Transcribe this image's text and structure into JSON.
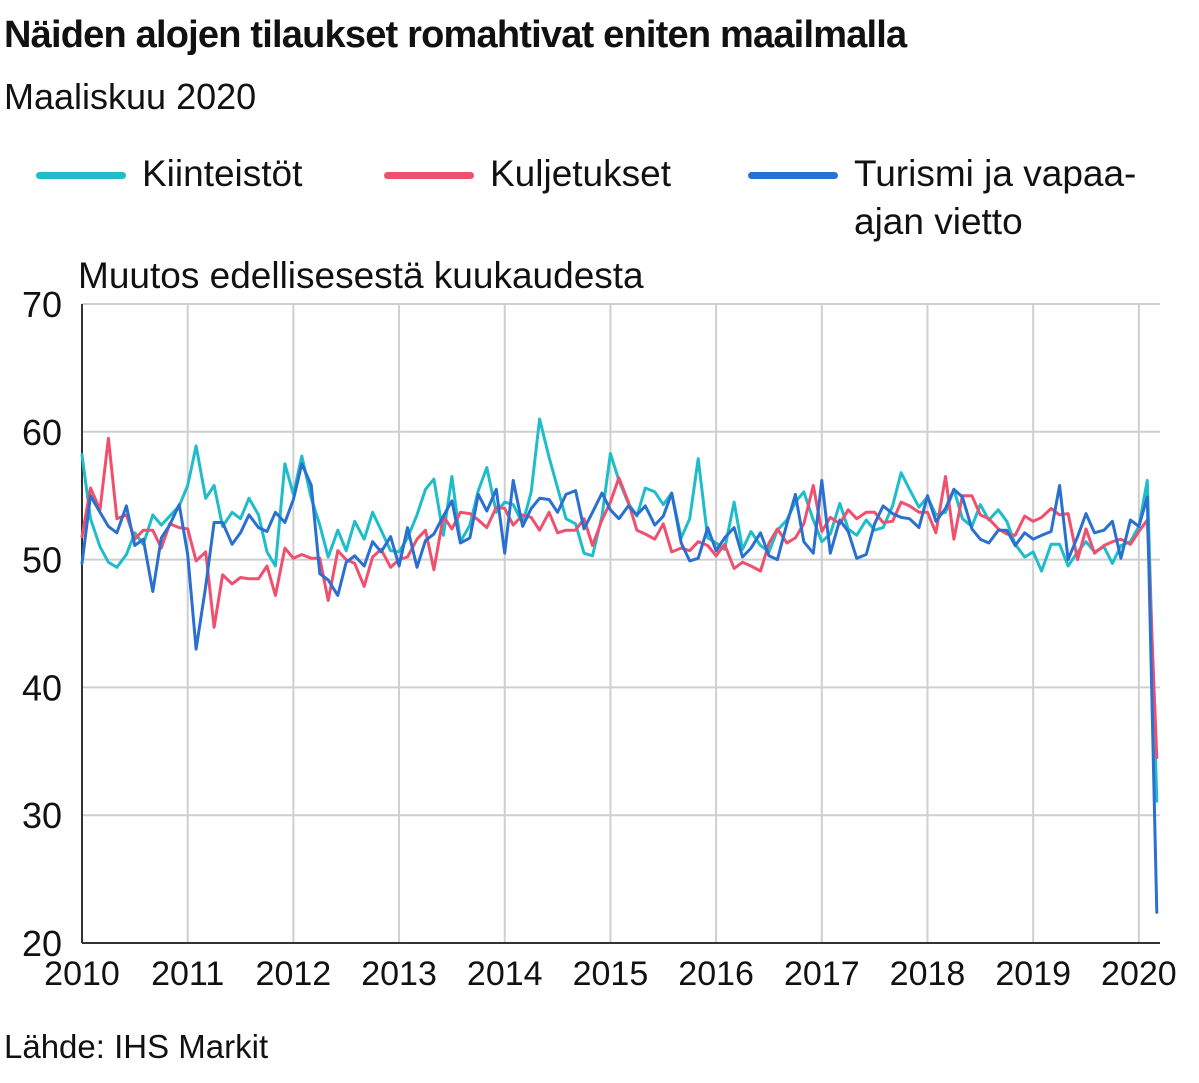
{
  "title": "Näiden alojen tilaukset romahtivat eniten maailmalla",
  "subtitle": "Maaliskuu 2020",
  "source": "Lähde: IHS Markit",
  "chart_data": {
    "type": "line",
    "ylabel": "Muutos edellisesestä kuukaudesta",
    "ylim": [
      20,
      70
    ],
    "y_ticks": [
      "70",
      "60",
      "50",
      "40",
      "30",
      "20"
    ],
    "xlim": [
      2010,
      2020.2
    ],
    "x_ticks": [
      "2010",
      "2011",
      "2012",
      "2013",
      "2014",
      "2015",
      "2016",
      "2017",
      "2018",
      "2019",
      "2020"
    ],
    "grid": true,
    "legend_position": "top",
    "series": [
      {
        "name": "Kiinteistöt",
        "color": "#1fbdca",
        "x": [
          2010.0,
          2010.08,
          2010.17,
          2010.25,
          2010.33,
          2010.42,
          2010.5,
          2010.58,
          2010.67,
          2010.75,
          2010.83,
          2010.92,
          2011.0,
          2011.08,
          2011.17,
          2011.25,
          2011.33,
          2011.42,
          2011.5,
          2011.58,
          2011.67,
          2011.75,
          2011.83,
          2011.92,
          2012.0,
          2012.08,
          2012.17,
          2012.25,
          2012.33,
          2012.42,
          2012.5,
          2012.58,
          2012.67,
          2012.75,
          2012.83,
          2012.92,
          2013.0,
          2013.08,
          2013.17,
          2013.25,
          2013.33,
          2013.42,
          2013.5,
          2013.58,
          2013.67,
          2013.75,
          2013.83,
          2013.92,
          2014.0,
          2014.08,
          2014.17,
          2014.25,
          2014.33,
          2014.42,
          2014.5,
          2014.58,
          2014.67,
          2014.75,
          2014.83,
          2014.92,
          2015.0,
          2015.08,
          2015.17,
          2015.25,
          2015.33,
          2015.42,
          2015.5,
          2015.58,
          2015.67,
          2015.75,
          2015.83,
          2015.92,
          2016.0,
          2016.08,
          2016.17,
          2016.25,
          2016.33,
          2016.42,
          2016.5,
          2016.58,
          2016.67,
          2016.75,
          2016.83,
          2016.92,
          2017.0,
          2017.08,
          2017.17,
          2017.25,
          2017.33,
          2017.42,
          2017.5,
          2017.58,
          2017.67,
          2017.75,
          2017.83,
          2017.92,
          2018.0,
          2018.08,
          2018.17,
          2018.25,
          2018.33,
          2018.42,
          2018.5,
          2018.58,
          2018.67,
          2018.75,
          2018.83,
          2018.92,
          2019.0,
          2019.08,
          2019.17,
          2019.25,
          2019.33,
          2019.42,
          2019.5,
          2019.58,
          2019.67,
          2019.75,
          2019.83,
          2019.92,
          2020.0,
          2020.08,
          2020.17
        ],
        "values": [
          58.2,
          53.2,
          51.0,
          49.8,
          49.4,
          50.4,
          52.1,
          51.2,
          53.5,
          52.7,
          53.4,
          54.2,
          55.8,
          58.9,
          54.8,
          55.8,
          52.6,
          53.7,
          53.2,
          54.8,
          53.5,
          50.6,
          49.5,
          57.5,
          55.1,
          58.1,
          54.8,
          52.7,
          50.2,
          52.3,
          50.7,
          53.0,
          51.6,
          53.7,
          52.3,
          50.7,
          50.6,
          51.7,
          53.5,
          55.5,
          56.3,
          51.9,
          56.5,
          51.4,
          52.7,
          55.4,
          57.2,
          53.7,
          54.5,
          54.3,
          52.8,
          55.3,
          61.0,
          58.0,
          55.6,
          53.2,
          52.8,
          50.5,
          50.3,
          53.4,
          58.3,
          56.2,
          54.4,
          53.4,
          55.6,
          55.3,
          54.3,
          55.2,
          51.7,
          53.2,
          57.9,
          51.7,
          51.3,
          50.8,
          54.5,
          50.8,
          52.2,
          51.1,
          50.6,
          52.3,
          53.1,
          54.5,
          55.3,
          53.1,
          51.4,
          52.0,
          54.4,
          52.4,
          51.9,
          53.1,
          52.3,
          52.5,
          54.2,
          56.8,
          55.5,
          54.1,
          54.9,
          53.5,
          53.7,
          55.5,
          53.2,
          52.6,
          54.3,
          53.1,
          53.9,
          53.0,
          51.2,
          50.2,
          50.6,
          49.1,
          51.2,
          51.2,
          49.5,
          50.6,
          51.4,
          50.6,
          51.0,
          49.7,
          51.1,
          51.4,
          52.6,
          56.2,
          31.1
        ]
      },
      {
        "name": "Kuljetukset",
        "color": "#f0506e",
        "x": [
          2010.0,
          2010.08,
          2010.17,
          2010.25,
          2010.33,
          2010.42,
          2010.5,
          2010.58,
          2010.67,
          2010.75,
          2010.83,
          2010.92,
          2011.0,
          2011.08,
          2011.17,
          2011.25,
          2011.33,
          2011.42,
          2011.5,
          2011.58,
          2011.67,
          2011.75,
          2011.83,
          2011.92,
          2012.0,
          2012.08,
          2012.17,
          2012.25,
          2012.33,
          2012.42,
          2012.5,
          2012.58,
          2012.67,
          2012.75,
          2012.83,
          2012.92,
          2013.0,
          2013.08,
          2013.17,
          2013.25,
          2013.33,
          2013.42,
          2013.5,
          2013.58,
          2013.67,
          2013.75,
          2013.83,
          2013.92,
          2014.0,
          2014.08,
          2014.17,
          2014.25,
          2014.33,
          2014.42,
          2014.5,
          2014.58,
          2014.67,
          2014.75,
          2014.83,
          2014.92,
          2015.0,
          2015.08,
          2015.17,
          2015.25,
          2015.33,
          2015.42,
          2015.5,
          2015.58,
          2015.67,
          2015.75,
          2015.83,
          2015.92,
          2016.0,
          2016.08,
          2016.17,
          2016.25,
          2016.33,
          2016.42,
          2016.5,
          2016.58,
          2016.67,
          2016.75,
          2016.83,
          2016.92,
          2017.0,
          2017.08,
          2017.17,
          2017.25,
          2017.33,
          2017.42,
          2017.5,
          2017.58,
          2017.67,
          2017.75,
          2017.83,
          2017.92,
          2018.0,
          2018.08,
          2018.17,
          2018.25,
          2018.33,
          2018.42,
          2018.5,
          2018.58,
          2018.67,
          2018.75,
          2018.83,
          2018.92,
          2019.0,
          2019.08,
          2019.17,
          2019.25,
          2019.33,
          2019.42,
          2019.5,
          2019.58,
          2019.67,
          2019.75,
          2019.83,
          2019.92,
          2020.0,
          2020.08,
          2020.17
        ],
        "values": [
          51.8,
          55.6,
          53.9,
          59.5,
          53.2,
          53.5,
          51.6,
          52.3,
          52.3,
          50.9,
          52.8,
          52.5,
          52.4,
          49.9,
          50.6,
          44.7,
          48.8,
          48.1,
          48.6,
          48.5,
          48.5,
          49.5,
          47.2,
          50.9,
          50.1,
          50.4,
          50.1,
          50.1,
          46.8,
          50.7,
          50.0,
          49.7,
          47.9,
          50.2,
          50.8,
          49.4,
          50.0,
          50.2,
          51.6,
          52.3,
          49.2,
          53.4,
          52.4,
          53.7,
          53.6,
          53.1,
          52.5,
          54.1,
          54.0,
          52.7,
          53.5,
          53.3,
          52.3,
          53.7,
          52.1,
          52.3,
          52.3,
          53.2,
          51.1,
          53.1,
          54.5,
          56.4,
          54.5,
          52.3,
          52.0,
          51.6,
          52.8,
          50.6,
          50.9,
          50.7,
          51.4,
          51.1,
          50.3,
          51.2,
          49.3,
          49.8,
          49.5,
          49.1,
          51.3,
          52.4,
          51.3,
          51.7,
          52.8,
          55.8,
          52.2,
          53.3,
          52.8,
          53.9,
          53.2,
          53.7,
          53.7,
          52.9,
          53.0,
          54.5,
          54.2,
          53.7,
          53.7,
          52.1,
          56.5,
          51.6,
          55.0,
          55.0,
          53.5,
          53.2,
          52.4,
          52.0,
          51.9,
          53.4,
          53.0,
          53.3,
          54.0,
          53.5,
          53.6,
          50.0,
          52.4,
          50.5,
          51.1,
          51.4,
          51.6,
          51.2,
          52.2,
          53.1,
          34.5
        ]
      },
      {
        "name": "Turismi ja vapaa-ajan vietto",
        "color": "#2a70d0",
        "x": [
          2010.0,
          2010.08,
          2010.17,
          2010.25,
          2010.33,
          2010.42,
          2010.5,
          2010.58,
          2010.67,
          2010.75,
          2010.83,
          2010.92,
          2011.0,
          2011.08,
          2011.17,
          2011.25,
          2011.33,
          2011.42,
          2011.5,
          2011.58,
          2011.67,
          2011.75,
          2011.83,
          2011.92,
          2012.0,
          2012.08,
          2012.17,
          2012.25,
          2012.33,
          2012.42,
          2012.5,
          2012.58,
          2012.67,
          2012.75,
          2012.83,
          2012.92,
          2013.0,
          2013.08,
          2013.17,
          2013.25,
          2013.33,
          2013.42,
          2013.5,
          2013.58,
          2013.67,
          2013.75,
          2013.83,
          2013.92,
          2014.0,
          2014.08,
          2014.17,
          2014.25,
          2014.33,
          2014.42,
          2014.5,
          2014.58,
          2014.67,
          2014.75,
          2014.83,
          2014.92,
          2015.0,
          2015.08,
          2015.17,
          2015.25,
          2015.33,
          2015.42,
          2015.5,
          2015.58,
          2015.67,
          2015.75,
          2015.83,
          2015.92,
          2016.0,
          2016.08,
          2016.17,
          2016.25,
          2016.33,
          2016.42,
          2016.5,
          2016.58,
          2016.67,
          2016.75,
          2016.83,
          2016.92,
          2017.0,
          2017.08,
          2017.17,
          2017.25,
          2017.33,
          2017.42,
          2017.5,
          2017.58,
          2017.67,
          2017.75,
          2017.83,
          2017.92,
          2018.0,
          2018.08,
          2018.17,
          2018.25,
          2018.33,
          2018.42,
          2018.5,
          2018.58,
          2018.67,
          2018.75,
          2018.83,
          2018.92,
          2019.0,
          2019.08,
          2019.17,
          2019.25,
          2019.33,
          2019.42,
          2019.5,
          2019.58,
          2019.67,
          2019.75,
          2019.83,
          2019.92,
          2020.0,
          2020.08,
          2020.17
        ],
        "values": [
          49.7,
          55.0,
          53.7,
          52.6,
          52.1,
          54.2,
          51.1,
          51.6,
          47.5,
          51.7,
          52.7,
          54.3,
          50.4,
          43.0,
          47.9,
          52.9,
          52.9,
          51.2,
          52.1,
          53.5,
          52.5,
          52.2,
          53.7,
          52.9,
          54.7,
          57.5,
          55.8,
          48.9,
          48.4,
          47.2,
          49.8,
          50.3,
          49.5,
          51.4,
          50.6,
          51.8,
          49.5,
          52.5,
          49.4,
          51.5,
          52.0,
          53.4,
          54.6,
          51.3,
          51.7,
          55.1,
          53.8,
          55.5,
          50.5,
          56.2,
          52.6,
          54.0,
          54.8,
          54.7,
          53.7,
          55.1,
          55.4,
          52.4,
          53.7,
          55.2,
          53.9,
          53.2,
          54.2,
          53.5,
          54.2,
          52.7,
          53.4,
          55.2,
          51.3,
          49.9,
          50.1,
          52.5,
          50.7,
          51.7,
          52.5,
          50.2,
          50.9,
          52.1,
          50.3,
          50.0,
          52.8,
          55.1,
          51.4,
          50.5,
          56.2,
          50.5,
          53.1,
          52.2,
          50.1,
          50.4,
          52.8,
          54.2,
          53.6,
          53.3,
          53.2,
          52.5,
          55.0,
          53.0,
          54.0,
          55.5,
          54.9,
          52.4,
          51.6,
          51.3,
          52.3,
          52.3,
          51.1,
          52.1,
          51.6,
          51.9,
          52.2,
          55.8,
          50.0,
          51.8,
          53.6,
          52.1,
          52.3,
          53.0,
          50.1,
          53.1,
          52.6,
          54.9,
          22.4
        ]
      }
    ]
  }
}
